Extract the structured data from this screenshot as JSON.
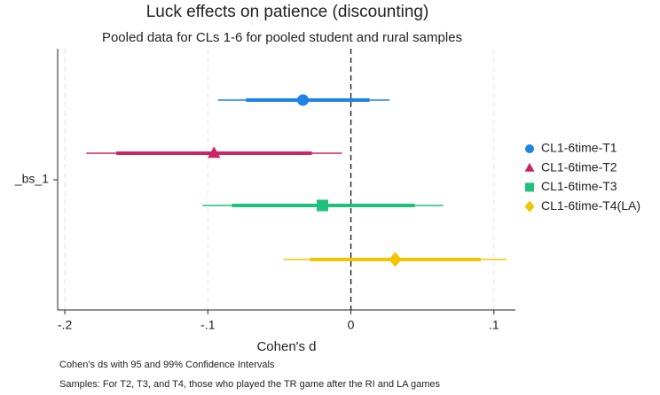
{
  "chart_data": {
    "type": "coefplot",
    "title": "Luck effects on patience (discounting)",
    "subtitle": "Pooled data for CLs 1-6 for pooled student and rural samples",
    "x_label": "Cohen's d",
    "category": "_bs_1",
    "notes": [
      "Cohen's ds with 95 and 99% Confidence Intervals",
      "Samples: For T2, T3, and T4, those who played the TR game after the RI and LA games"
    ],
    "xlim": [
      -0.205,
      0.115
    ],
    "xticks": [
      {
        "value": -0.2,
        "label": "-.2"
      },
      {
        "value": -0.1,
        "label": "-.1"
      },
      0,
      {
        "value": 0.1,
        "label": ".1"
      }
    ],
    "grid": true,
    "reference_line": 0,
    "legend": "right",
    "series": [
      {
        "name": "CL1-6time-T1",
        "color": "#1f83e6",
        "marker": "circle",
        "value": -0.0335,
        "ci95": [
          -0.0733,
          0.013
        ],
        "ci99": [
          -0.093,
          0.027
        ]
      },
      {
        "name": "CL1-6time-T2",
        "color": "#cc2566",
        "marker": "triangle",
        "value": -0.0957,
        "ci95": [
          -0.164,
          -0.0273
        ],
        "ci99": [
          -0.185,
          -0.0062
        ]
      },
      {
        "name": "CL1-6time-T3",
        "color": "#1fbf7e",
        "marker": "square",
        "value": -0.0199,
        "ci95": [
          -0.0832,
          0.0447
        ],
        "ci99": [
          -0.1037,
          0.0646
        ]
      },
      {
        "name": "CL1-6time-T4(LA)",
        "color": "#f2c500",
        "marker": "diamond",
        "value": 0.031,
        "ci95": [
          -0.0286,
          0.0907
        ],
        "ci99": [
          -0.0472,
          0.1087
        ]
      }
    ]
  }
}
